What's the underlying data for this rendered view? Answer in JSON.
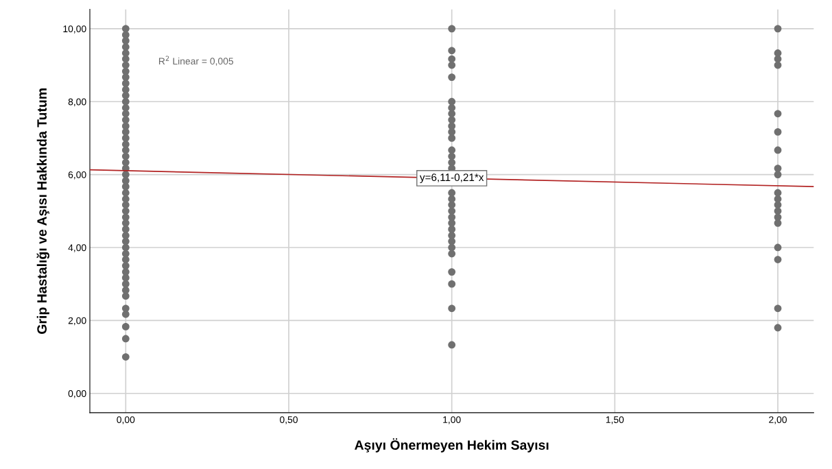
{
  "chart_data": {
    "type": "scatter",
    "xlabel": "Aşıyı Önermeyen Hekim Sayısı",
    "ylabel": "Grip Hastalığı ve Aşısı Hakkında Tutum",
    "xlim": [
      -0.11,
      2.11
    ],
    "ylim": [
      -0.53,
      10.53
    ],
    "xticks": [
      {
        "value": 0,
        "label": "0,00"
      },
      {
        "value": 0.5,
        "label": "0,50"
      },
      {
        "value": 1,
        "label": "1,00"
      },
      {
        "value": 1.5,
        "label": "1,50"
      },
      {
        "value": 2,
        "label": "2,00"
      }
    ],
    "yticks": [
      {
        "value": 0,
        "label": "0,00"
      },
      {
        "value": 2,
        "label": "2,00"
      },
      {
        "value": 4,
        "label": "4,00"
      },
      {
        "value": 6,
        "label": "6,00"
      },
      {
        "value": 8,
        "label": "8,00"
      },
      {
        "value": 10,
        "label": "10,00"
      }
    ],
    "grid": true,
    "marker": "circle",
    "series": [
      {
        "color": "#707070",
        "x": [
          0,
          0,
          0,
          0,
          0,
          0,
          0,
          0,
          0,
          0,
          0,
          0,
          0,
          0,
          0,
          0,
          0,
          0,
          0,
          0,
          0,
          0,
          0,
          0,
          0,
          0,
          0,
          0,
          0,
          0,
          0,
          0,
          0,
          0,
          0,
          0,
          0,
          0,
          0,
          0,
          0,
          0,
          0,
          0,
          0,
          0,
          0,
          0,
          0,
          0
        ],
        "values": [
          1.0,
          1.5,
          1.83,
          2.17,
          2.33,
          2.67,
          2.83,
          3.0,
          3.17,
          3.33,
          3.5,
          3.67,
          3.83,
          4.0,
          4.17,
          4.33,
          4.5,
          4.67,
          4.83,
          5.0,
          5.17,
          5.33,
          5.5,
          5.67,
          5.83,
          6.0,
          6.17,
          6.33,
          6.5,
          6.67,
          6.83,
          7.0,
          7.17,
          7.33,
          7.5,
          7.67,
          7.83,
          8.0,
          8.17,
          8.33,
          8.5,
          8.67,
          8.83,
          9.0,
          9.17,
          9.33,
          9.5,
          9.67,
          9.83,
          10.0
        ]
      },
      {
        "color": "#707070",
        "x": [
          1,
          1,
          1,
          1,
          1,
          1,
          1,
          1,
          1,
          1,
          1,
          1,
          1,
          1,
          1,
          1,
          1,
          1,
          1,
          1,
          1,
          1,
          1,
          1,
          1,
          1,
          1,
          1,
          1,
          1,
          1
        ],
        "values": [
          1.33,
          2.33,
          3.0,
          3.33,
          3.83,
          4.0,
          4.17,
          4.33,
          4.5,
          4.67,
          4.83,
          5.0,
          5.17,
          5.33,
          5.5,
          6.17,
          6.33,
          6.5,
          6.67,
          7.0,
          7.17,
          7.33,
          7.5,
          7.67,
          7.83,
          8.0,
          8.67,
          9.0,
          9.17,
          9.4,
          10.0
        ]
      },
      {
        "color": "#707070",
        "x": [
          2,
          2,
          2,
          2,
          2,
          2,
          2,
          2,
          2,
          2,
          2,
          2,
          2,
          2,
          2,
          2,
          2,
          2,
          2
        ],
        "values": [
          1.8,
          2.33,
          3.67,
          4.0,
          4.67,
          4.83,
          5.0,
          5.17,
          5.33,
          5.5,
          6.0,
          6.17,
          6.67,
          7.17,
          7.67,
          9.0,
          9.17,
          9.33,
          10.0
        ]
      },
      {
        "type": "line",
        "marker": "none",
        "color": "#b22222",
        "x": [
          -0.11,
          2.11
        ],
        "values": [
          6.13,
          5.67
        ]
      }
    ],
    "annotations": [
      {
        "text": "y=6,11-0,21*x",
        "x": 1.0,
        "y": 5.9
      },
      "R$^{2}$ Linear = 0,005"
    ]
  }
}
